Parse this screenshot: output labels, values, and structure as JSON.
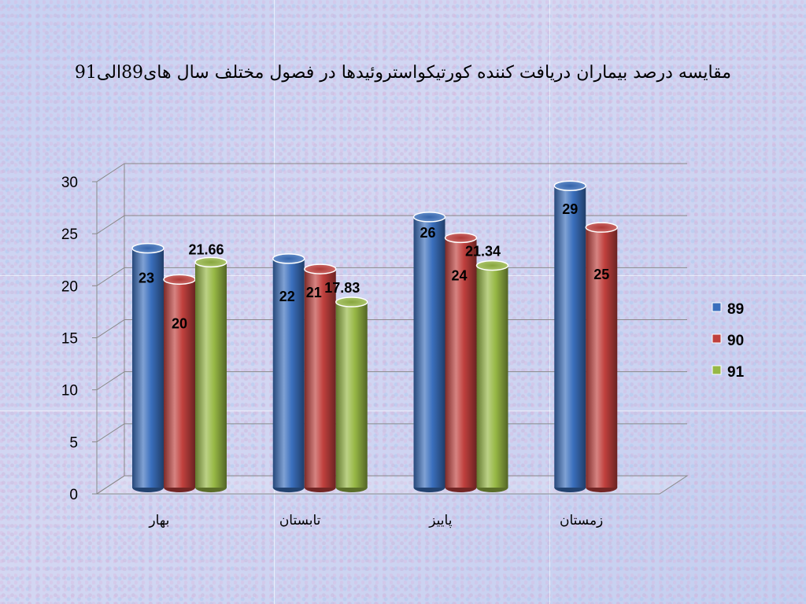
{
  "chart_data": {
    "type": "bar",
    "title": "مقایسه درصد بیماران دریافت کننده کورتیکواستروئیدها در فصول مختلف سال های89الی91",
    "categories": [
      "بهار",
      "تابستان",
      "پاییز",
      "زمستان"
    ],
    "series": [
      {
        "name": "89",
        "color": "#3a6fbd",
        "values": [
          23,
          22,
          26,
          29
        ],
        "labels": [
          "23",
          "22",
          "26",
          "29"
        ]
      },
      {
        "name": "90",
        "color": "#c0403d",
        "values": [
          20,
          21,
          24,
          25
        ],
        "labels": [
          "20",
          "21",
          "24",
          "25"
        ]
      },
      {
        "name": "91",
        "color": "#97b845",
        "values": [
          21.66,
          17.83,
          21.34,
          null
        ],
        "labels": [
          "21.66",
          "17.83",
          "21.34",
          ""
        ]
      }
    ],
    "ylim": [
      0,
      30
    ],
    "yticks": [
      "0",
      "5",
      "10",
      "15",
      "20",
      "25",
      "30"
    ],
    "legend": "right",
    "grid": true
  }
}
